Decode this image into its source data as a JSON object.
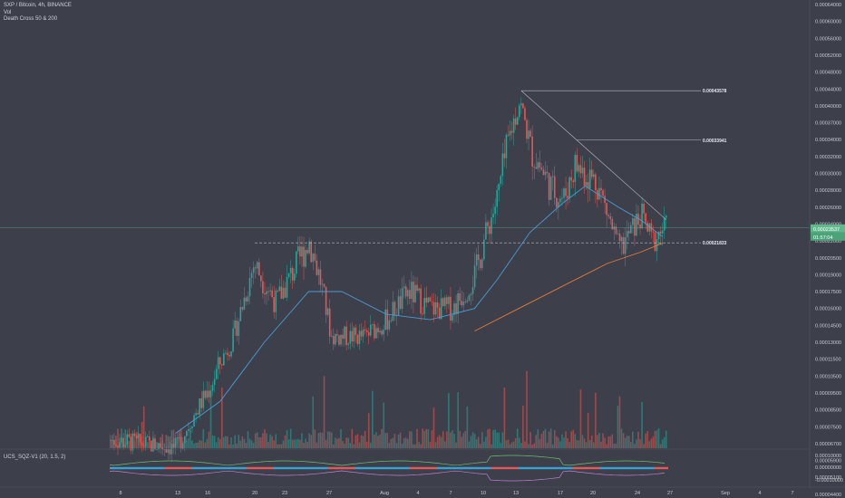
{
  "header": {
    "symbol_line": "SXP / Bitcoin, 4h, BINANCE",
    "indicator_vol": "Vol",
    "indicator_ma": "Death Cross 50 & 200"
  },
  "indicator_pane": {
    "label": "UCS_SQZ-V1 (20, 1.5, 2)",
    "ticks": [
      "0.00010000",
      "0.00000000",
      "-0.00010000"
    ]
  },
  "price_tag": {
    "value": "0.00023537",
    "countdown": "01:57:04"
  },
  "colors": {
    "background": "#3d3f4b",
    "up": "#26a69a",
    "down": "#ef5350",
    "ma_fast": "#4a9bd4",
    "ma_slow": "#e07b39",
    "tag": "#5fb98c"
  },
  "chart_data": {
    "type": "candlestick",
    "symbol": "SXP/BTC",
    "timeframe": "4h",
    "exchange": "BINANCE",
    "y_axis_ticks": [
      "0.00064000",
      "0.00060000",
      "0.00056000",
      "0.00052000",
      "0.00048000",
      "0.00044000",
      "0.00040000",
      "0.00037000",
      "0.00034000",
      "0.00032000",
      "0.00030000",
      "0.00028000",
      "0.00026000",
      "0.00024000",
      "0.00022000",
      "0.00020500",
      "0.00019000",
      "0.00017500",
      "0.00016000",
      "0.00014500",
      "0.00013000",
      "0.00011500",
      "0.00010500",
      "0.00009500",
      "0.00008500",
      "0.00007500",
      "0.00006700",
      "0.00005900",
      "0.00005100",
      "0.00004400",
      "0.00003750"
    ],
    "x_axis_ticks": [
      "8",
      "13",
      "16",
      "20",
      "23",
      "27",
      "Aug",
      "4",
      "7",
      "10",
      "13",
      "17",
      "20",
      "24",
      "27",
      "Sep",
      "4",
      "7"
    ],
    "fib_levels": [
      {
        "label": "0.00043578",
        "value": 0.00043578
      },
      {
        "label": "0.00033941",
        "value": 0.00033941
      },
      {
        "label": "0.00021833",
        "value": 0.00021833
      }
    ],
    "close_path": [
      {
        "x": "Jul 5",
        "close": 7e-05
      },
      {
        "x": "Jul 13",
        "close": 6.5e-05
      },
      {
        "x": "Jul 14",
        "close": 7.5e-05
      },
      {
        "x": "Jul 16",
        "close": 9.8e-05
      },
      {
        "x": "Jul 18",
        "close": 0.00013
      },
      {
        "x": "Jul 20",
        "close": 0.0002
      },
      {
        "x": "Jul 22",
        "close": 0.000165
      },
      {
        "x": "Jul 25",
        "close": 0.00022
      },
      {
        "x": "Jul 26",
        "close": 0.000185
      },
      {
        "x": "Jul 27",
        "close": 0.000135
      },
      {
        "x": "Jul 30",
        "close": 0.000135
      },
      {
        "x": "Aug 1",
        "close": 0.00015
      },
      {
        "x": "Aug 3",
        "close": 0.000175
      },
      {
        "x": "Aug 5",
        "close": 0.00016
      },
      {
        "x": "Aug 7",
        "close": 0.00016
      },
      {
        "x": "Aug 9",
        "close": 0.00019
      },
      {
        "x": "Aug 11",
        "close": 0.00027
      },
      {
        "x": "Aug 13",
        "close": 0.00041
      },
      {
        "x": "Aug 14",
        "close": 0.00033
      },
      {
        "x": "Aug 16",
        "close": 0.00028
      },
      {
        "x": "Aug 17",
        "close": 0.00027
      },
      {
        "x": "Aug 18",
        "close": 0.00031
      },
      {
        "x": "Aug 20",
        "close": 0.00029
      },
      {
        "x": "Aug 22",
        "close": 0.00021
      },
      {
        "x": "Aug 24",
        "close": 0.00025
      },
      {
        "x": "Aug 25",
        "close": 0.00022
      },
      {
        "x": "Aug 26",
        "close": 0.0002354
      }
    ],
    "ma_fast_path": [
      {
        "x": "Jul 13",
        "value": 7.2e-05
      },
      {
        "x": "Jul 17",
        "value": 9e-05
      },
      {
        "x": "Jul 21",
        "value": 0.00013
      },
      {
        "x": "Jul 25",
        "value": 0.000175
      },
      {
        "x": "Jul 28",
        "value": 0.000175
      },
      {
        "x": "Aug 1",
        "value": 0.000155
      },
      {
        "x": "Aug 5",
        "value": 0.00015
      },
      {
        "x": "Aug 9",
        "value": 0.00016
      },
      {
        "x": "Aug 11",
        "value": 0.000185
      },
      {
        "x": "Aug 14",
        "value": 0.00023
      },
      {
        "x": "Aug 17",
        "value": 0.000265
      },
      {
        "x": "Aug 19",
        "value": 0.000285
      },
      {
        "x": "Aug 22",
        "value": 0.00026
      },
      {
        "x": "Aug 24",
        "value": 0.000245
      },
      {
        "x": "Aug 26",
        "value": 0.000225
      }
    ],
    "ma_slow_path": [
      {
        "x": "Aug 9",
        "value": 0.00014
      },
      {
        "x": "Aug 13",
        "value": 0.00016
      },
      {
        "x": "Aug 17",
        "value": 0.00018
      },
      {
        "x": "Aug 21",
        "value": 0.0002
      },
      {
        "x": "Aug 24",
        "value": 0.00021
      },
      {
        "x": "Aug 26",
        "value": 0.000218
      }
    ]
  }
}
